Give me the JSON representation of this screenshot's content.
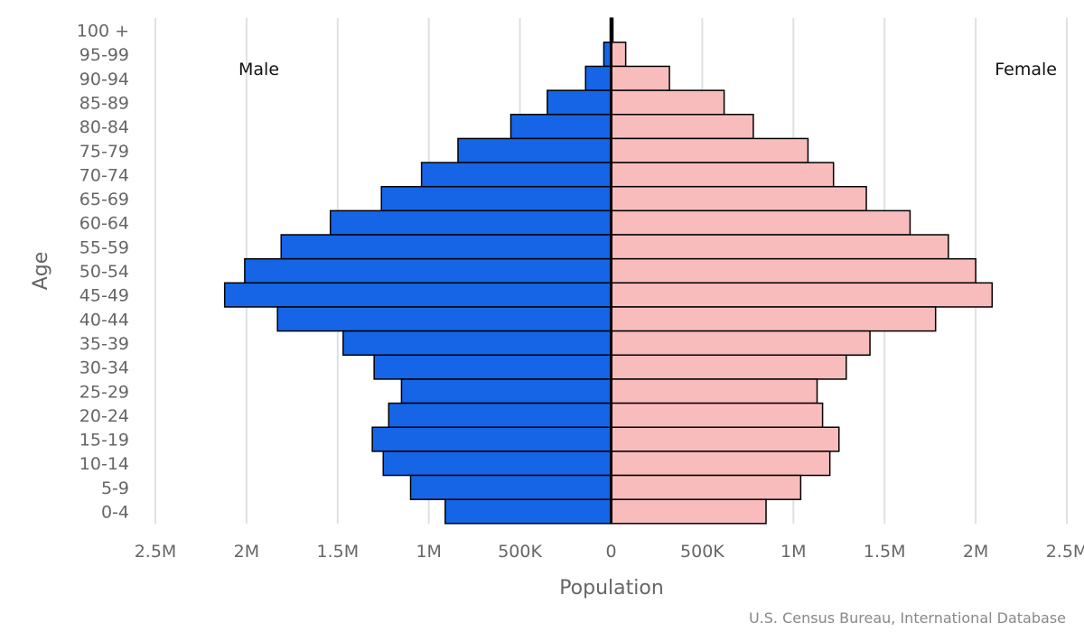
{
  "chart_data": {
    "type": "bar",
    "orientation": "horizontal",
    "subtype": "population-pyramid",
    "xlabel": "Population",
    "ylabel": "Age",
    "xlim": [
      -2500000,
      2500000
    ],
    "x_ticks": [
      -2500000,
      -2000000,
      -1500000,
      -1000000,
      -500000,
      0,
      500000,
      1000000,
      1500000,
      2000000,
      2500000
    ],
    "x_tick_labels": [
      "2.5M",
      "2M",
      "1.5M",
      "1M",
      "500K",
      "0",
      "500K",
      "1M",
      "1.5M",
      "2M",
      "2.5M"
    ],
    "grid": true,
    "categories": [
      "100 +",
      "95-99",
      "90-94",
      "85-89",
      "80-84",
      "75-79",
      "70-74",
      "65-69",
      "60-64",
      "55-59",
      "50-54",
      "45-49",
      "40-44",
      "35-39",
      "30-34",
      "25-29",
      "20-24",
      "15-19",
      "10-14",
      "5-9",
      "0-4"
    ],
    "series": [
      {
        "name": "Male",
        "color": "#1565e6",
        "values": [
          5000,
          40000,
          140000,
          350000,
          550000,
          840000,
          1040000,
          1260000,
          1540000,
          1810000,
          2010000,
          2120000,
          1830000,
          1470000,
          1300000,
          1150000,
          1220000,
          1310000,
          1250000,
          1100000,
          910000
        ]
      },
      {
        "name": "Female",
        "color": "#f9bcbc",
        "values": [
          10000,
          80000,
          320000,
          620000,
          780000,
          1080000,
          1220000,
          1400000,
          1640000,
          1850000,
          2000000,
          2090000,
          1780000,
          1420000,
          1290000,
          1130000,
          1160000,
          1250000,
          1200000,
          1040000,
          850000
        ]
      }
    ],
    "annotations": {
      "left": "Male",
      "right": "Female"
    },
    "credit": "U.S. Census Bureau, International Database"
  }
}
